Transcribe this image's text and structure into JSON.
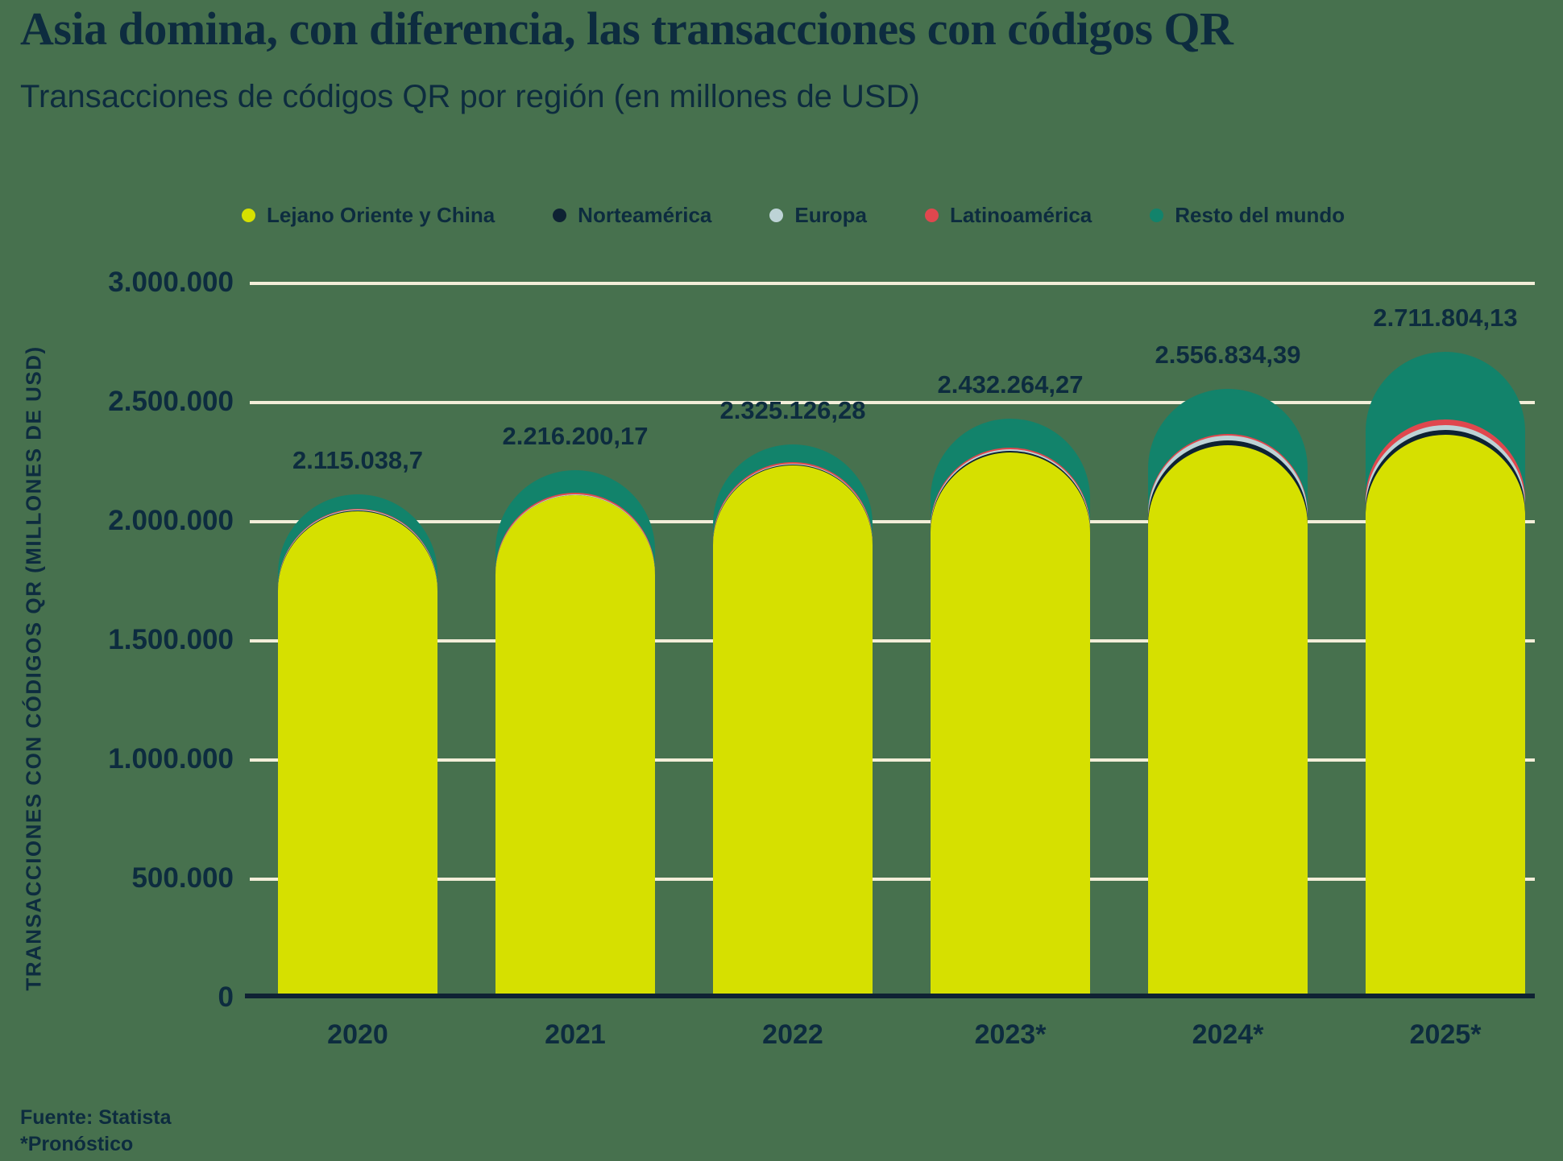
{
  "header": {
    "title": "Asia domina, con diferencia, las transacciones con códigos QR",
    "subtitle": "Transacciones de códigos QR por región (en millones de USD)"
  },
  "footer": {
    "source": "Fuente: Statista",
    "note": "*Pronóstico"
  },
  "colors": {
    "background": "#47714E",
    "text": "#0D2C3F",
    "gridline": "#F3EED9",
    "axis_line": "#0F2233"
  },
  "chart_data": {
    "type": "bar",
    "stacked": true,
    "bar_corner": "rounded-top",
    "title": "Asia domina, con diferencia, las transacciones con códigos QR",
    "subtitle": "Transacciones de códigos QR por región (en millones de USD)",
    "categories": [
      "2020",
      "2021",
      "2022",
      "2023*",
      "2024*",
      "2025*"
    ],
    "series": [
      {
        "name": "Lejano Oriente y China",
        "color": "#D6E000",
        "values": [
          2045000,
          2110000,
          2235000,
          2290000,
          2320000,
          2365000
        ]
      },
      {
        "name": "Norteamérica",
        "color": "#0E2233",
        "values": [
          2500,
          3000,
          4000,
          9000,
          22000,
          20000
        ]
      },
      {
        "name": "Europa",
        "color": "#BDD3D6",
        "values": [
          3000,
          3500,
          4500,
          5000,
          18000,
          22000
        ]
      },
      {
        "name": "Latinoamérica",
        "color": "#E0474E",
        "values": [
          3500,
          4000,
          5000,
          5500,
          8000,
          22000
        ]
      },
      {
        "name": "Resto del mundo",
        "color": "#12836B",
        "values": [
          61038.7,
          95700.17,
          76626.28,
          122764.27,
          188834.39,
          282804.13
        ]
      }
    ],
    "totals": [
      2115038.7,
      2216200.17,
      2325126.28,
      2432264.27,
      2556834.39,
      2711804.13
    ],
    "total_labels": [
      "2.115.038,7",
      "2.216.200,17",
      "2.325.126,28",
      "2.432.264,27",
      "2.556.834,39",
      "2.711.804,13"
    ],
    "xlabel": "",
    "ylabel": "TRANSACCIONES CON CÓDIGOS QR (MILLONES DE USD)",
    "ylim": [
      0,
      3000000
    ],
    "ytick_step": 500000,
    "ytick_labels": [
      "0",
      "500.000",
      "1.000.000",
      "1.500.000",
      "2.000.000",
      "2.500.000",
      "3.000.000"
    ],
    "grid": true,
    "legend_position": "top"
  }
}
